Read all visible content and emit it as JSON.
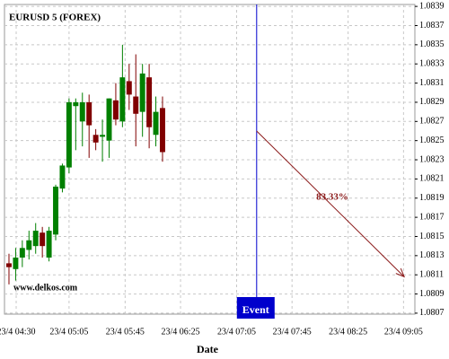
{
  "chart_data": {
    "type": "candlestick",
    "title": "EURUSD 5 (FOREX)",
    "source": "www.delkos.com",
    "x_label": "Date",
    "x": [
      0,
      1,
      2,
      3,
      4,
      5,
      6,
      7,
      8,
      9,
      10,
      11,
      12,
      13,
      14,
      15,
      16,
      17,
      18,
      19,
      20,
      21,
      22,
      23
    ],
    "open": [
      1.08122,
      1.08116,
      1.08128,
      1.08136,
      1.0814,
      1.08154,
      1.08128,
      1.08152,
      1.082,
      1.08222,
      1.08286,
      1.0827,
      1.0829,
      1.08256,
      1.08254,
      1.0825,
      1.08292,
      1.0827,
      1.08312,
      1.08296,
      1.0828,
      1.08316,
      1.08256,
      1.08284
    ],
    "high": [
      1.08132,
      1.08138,
      1.08146,
      1.08156,
      1.08164,
      1.0816,
      1.0816,
      1.08204,
      1.08226,
      1.08294,
      1.08294,
      1.083,
      1.08298,
      1.08262,
      1.08272,
      1.08294,
      1.0831,
      1.0835,
      1.0833,
      1.0834,
      1.0833,
      1.0833,
      1.08296,
      1.08296
    ],
    "low": [
      1.081,
      1.08104,
      1.08118,
      1.08126,
      1.08132,
      1.08128,
      1.08124,
      1.08146,
      1.08196,
      1.08216,
      1.0824,
      1.08244,
      1.08232,
      1.0824,
      1.08228,
      1.08232,
      1.08266,
      1.08264,
      1.08282,
      1.08244,
      1.08254,
      1.08242,
      1.08244,
      1.08228
    ],
    "close": [
      1.08118,
      1.08128,
      1.08138,
      1.08146,
      1.08156,
      1.0814,
      1.08156,
      1.08202,
      1.08224,
      1.0829,
      1.0829,
      1.0829,
      1.08266,
      1.08248,
      1.08256,
      1.08294,
      1.08272,
      1.08316,
      1.08298,
      1.08278,
      1.0832,
      1.08264,
      1.0828,
      1.08238
    ],
    "up_color": "#008000",
    "down_color": "#800000",
    "xlim": [
      -0.67,
      60.8
    ],
    "xticks": [
      {
        "value": 1.08,
        "label": "23/4 04:30"
      },
      {
        "value": 9.0,
        "label": "23/4 05:05"
      },
      {
        "value": 17.4,
        "label": "23/4 05:45"
      },
      {
        "value": 25.7,
        "label": "23/4 06:25"
      },
      {
        "value": 34.1,
        "label": "23/4 07:05"
      },
      {
        "value": 42.4,
        "label": "23/4 07:45"
      },
      {
        "value": 50.8,
        "label": "23/4 08:25"
      },
      {
        "value": 59.1,
        "label": "23/4 09:05"
      }
    ],
    "ylim": [
      1.08069,
      1.08392
    ],
    "yticks": [
      1.0807,
      1.0809,
      1.0811,
      1.0813,
      1.0815,
      1.0817,
      1.0819,
      1.0821,
      1.0823,
      1.0825,
      1.0827,
      1.0829,
      1.0831,
      1.0833,
      1.0835,
      1.0837,
      1.0839
    ],
    "grid": true,
    "event": {
      "label": "Event",
      "x": 37.1,
      "color": "#0000cc"
    },
    "forecast": {
      "label": "83.33%",
      "x_start": 37.1,
      "y_start": 1.0826,
      "x_end": 59.2,
      "y_end": 1.08108,
      "color": "#8b1a1a"
    }
  }
}
